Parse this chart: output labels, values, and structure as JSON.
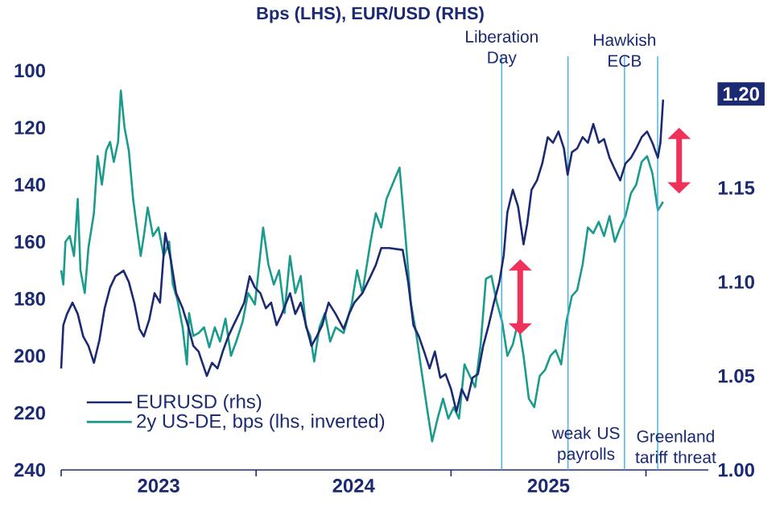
{
  "chart_data": {
    "type": "line",
    "title": "Bps (LHS), EUR/USD (RHS)",
    "series": [
      {
        "name": "EURUSD (rhs)",
        "color": "#1b2a72",
        "axis": "y2",
        "x": [
          2023.0,
          2023.011,
          2023.03,
          2023.058,
          2023.085,
          2023.113,
          2023.14,
          2023.168,
          2023.196,
          2023.223,
          2023.251,
          2023.278,
          2023.32,
          2023.347,
          2023.375,
          2023.402,
          2023.424,
          2023.452,
          2023.479,
          2023.507,
          2023.534,
          2023.562,
          2023.59,
          2023.623,
          2023.65,
          2023.678,
          2023.705,
          2023.747,
          2023.774,
          2023.802,
          2023.829,
          2023.857,
          2023.884,
          2023.912,
          2023.939,
          2023.967,
          2023.994,
          2024.022,
          2024.05,
          2024.077,
          2024.105,
          2024.132,
          2024.174,
          2024.201,
          2024.229,
          2024.256,
          2024.284,
          2024.311,
          2024.339,
          2024.372,
          2024.408,
          2024.449,
          2024.477,
          2024.504,
          2024.545,
          2024.587,
          2024.614,
          2024.642,
          2024.683,
          2024.752,
          2024.78,
          2024.807,
          2024.835,
          2024.862,
          2024.89,
          2024.917,
          2024.945,
          2024.972,
          2025.0,
          2025.028,
          2025.055,
          2025.083,
          2025.11,
          2025.138,
          2025.165,
          2025.193,
          2025.22,
          2025.248,
          2025.27,
          2025.289,
          2025.317,
          2025.344,
          2025.372,
          2025.391,
          2025.413,
          2025.441,
          2025.468,
          2025.496,
          2025.523,
          2025.551,
          2025.579,
          2025.598,
          2025.62,
          2025.647,
          2025.675,
          2025.702,
          2025.73,
          2025.758,
          2025.785,
          2025.813,
          2025.84,
          2025.868,
          2025.895,
          2025.923,
          2025.95,
          2025.978,
          2026.006,
          2026.033,
          2026.061,
          2026.074,
          2026.088
        ],
        "values": [
          1.054,
          1.077,
          1.083,
          1.089,
          1.083,
          1.071,
          1.066,
          1.057,
          1.069,
          1.086,
          1.097,
          1.103,
          1.106,
          1.1,
          1.089,
          1.075,
          1.071,
          1.08,
          1.094,
          1.089,
          1.126,
          1.112,
          1.094,
          1.086,
          1.077,
          1.066,
          1.063,
          1.05,
          1.057,
          1.054,
          1.063,
          1.071,
          1.077,
          1.083,
          1.089,
          1.103,
          1.097,
          1.094,
          1.086,
          1.089,
          1.077,
          1.083,
          1.094,
          1.083,
          1.089,
          1.077,
          1.066,
          1.071,
          1.077,
          1.089,
          1.083,
          1.075,
          1.083,
          1.089,
          1.094,
          1.103,
          1.109,
          1.118,
          1.118,
          1.117,
          1.1,
          1.077,
          1.071,
          1.063,
          1.054,
          1.063,
          1.049,
          1.051,
          1.043,
          1.031,
          1.043,
          1.037,
          1.049,
          1.051,
          1.066,
          1.077,
          1.089,
          1.1,
          1.114,
          1.137,
          1.149,
          1.14,
          1.12,
          1.131,
          1.149,
          1.154,
          1.163,
          1.177,
          1.174,
          1.18,
          1.171,
          1.157,
          1.169,
          1.171,
          1.177,
          1.174,
          1.184,
          1.174,
          1.176,
          1.166,
          1.16,
          1.154,
          1.163,
          1.166,
          1.171,
          1.177,
          1.18,
          1.174,
          1.166,
          1.174,
          1.197
        ]
      },
      {
        "name": "2y US-DE, bps (lhs, inverted)",
        "color": "#1a9b8c",
        "axis": "y",
        "x": [
          2023.0,
          2023.011,
          2023.022,
          2023.044,
          2023.066,
          2023.085,
          2023.099,
          2023.121,
          2023.14,
          2023.168,
          2023.187,
          2023.209,
          2023.231,
          2023.251,
          2023.27,
          2023.292,
          2023.306,
          2023.325,
          2023.347,
          2023.369,
          2023.388,
          2023.408,
          2023.424,
          2023.444,
          2023.471,
          2023.499,
          2023.526,
          2023.554,
          2023.573,
          2023.595,
          2023.623,
          2023.645,
          2023.656,
          2023.678,
          2023.705,
          2023.733,
          2023.76,
          2023.788,
          2023.815,
          2023.843,
          2023.871,
          2023.898,
          2023.931,
          2023.959,
          2023.994,
          2024.036,
          2024.063,
          2024.091,
          2024.118,
          2024.146,
          2024.174,
          2024.201,
          2024.229,
          2024.256,
          2024.278,
          2024.298,
          2024.325,
          2024.353,
          2024.38,
          2024.408,
          2024.449,
          2024.49,
          2024.518,
          2024.545,
          2024.587,
          2024.614,
          2024.642,
          2024.669,
          2024.711,
          2024.736,
          2024.766,
          2024.793,
          2024.821,
          2024.848,
          2024.876,
          2024.903,
          2024.931,
          2024.959,
          2024.986,
          2025.014,
          2025.041,
          2025.069,
          2025.096,
          2025.124,
          2025.152,
          2025.179,
          2025.207,
          2025.234,
          2025.262,
          2025.289,
          2025.317,
          2025.344,
          2025.372,
          2025.399,
          2025.427,
          2025.455,
          2025.482,
          2025.51,
          2025.537,
          2025.565,
          2025.592,
          2025.62,
          2025.647,
          2025.675,
          2025.702,
          2025.73,
          2025.758,
          2025.785,
          2025.813,
          2025.84,
          2025.868,
          2025.895,
          2025.923,
          2025.95,
          2025.978,
          2026.006,
          2026.033,
          2026.061,
          2026.088
        ],
        "values": [
          170,
          175,
          160,
          158,
          165,
          145,
          170,
          178,
          162,
          150,
          130,
          140,
          128,
          125,
          132,
          125,
          107,
          120,
          128,
          145,
          155,
          165,
          158,
          148,
          158,
          155,
          165,
          160,
          175,
          180,
          190,
          203,
          185,
          193,
          192,
          190,
          197,
          190,
          195,
          187,
          200,
          195,
          188,
          178,
          182,
          155,
          168,
          175,
          170,
          185,
          165,
          178,
          172,
          190,
          193,
          202,
          190,
          185,
          195,
          190,
          192,
          182,
          170,
          178,
          160,
          150,
          155,
          145,
          138,
          134,
          158,
          181,
          192,
          205,
          218,
          230,
          222,
          215,
          222,
          218,
          222,
          203,
          207,
          211,
          196,
          173,
          172,
          181,
          188,
          200,
          196,
          188,
          200,
          215,
          218,
          207,
          205,
          200,
          198,
          203,
          188,
          179,
          177,
          168,
          155,
          157,
          153,
          158,
          151,
          160,
          155,
          151,
          143,
          140,
          132,
          130,
          136,
          149,
          146
        ]
      }
    ],
    "xlim": [
      2023,
      2026.32
    ],
    "xticks": [
      {
        "value": 2023,
        "label": null
      },
      {
        "value": 2023.5,
        "label": "2023"
      },
      {
        "value": 2024,
        "label": null
      },
      {
        "value": 2024.5,
        "label": "2024"
      },
      {
        "value": 2025,
        "label": null
      },
      {
        "value": 2025.5,
        "label": "2025"
      },
      {
        "value": 2026,
        "label": null
      }
    ],
    "ylim": [
      240,
      95
    ],
    "yticks": [
      100,
      120,
      140,
      160,
      180,
      200,
      220,
      240
    ],
    "y2lim": [
      1.0,
      1.22
    ],
    "y2ticks": [
      {
        "value": 1.0,
        "label": "1.00"
      },
      1.05,
      {
        "value": 1.1,
        "label": "1.10"
      },
      1.15,
      {
        "value": 1.2,
        "label": "1.20"
      }
    ],
    "ref_lines": [
      {
        "axis": "x",
        "value": 2025.26,
        "label": "Liberation Day",
        "color": "#3fb0e0"
      },
      {
        "axis": "x",
        "value": 2025.6,
        "label": "weak US payrolls",
        "color": "#3fb0e0"
      },
      {
        "axis": "x",
        "value": 2025.89,
        "label": "Hawkish ECB",
        "color": "#3fb0e0"
      },
      {
        "axis": "x",
        "value": 2026.06,
        "label": "Greenland tariff threat",
        "color": "#3fb0e0"
      }
    ],
    "legend": "bottom left",
    "grid": false,
    "marker": "none",
    "line_style": "solid"
  }
}
